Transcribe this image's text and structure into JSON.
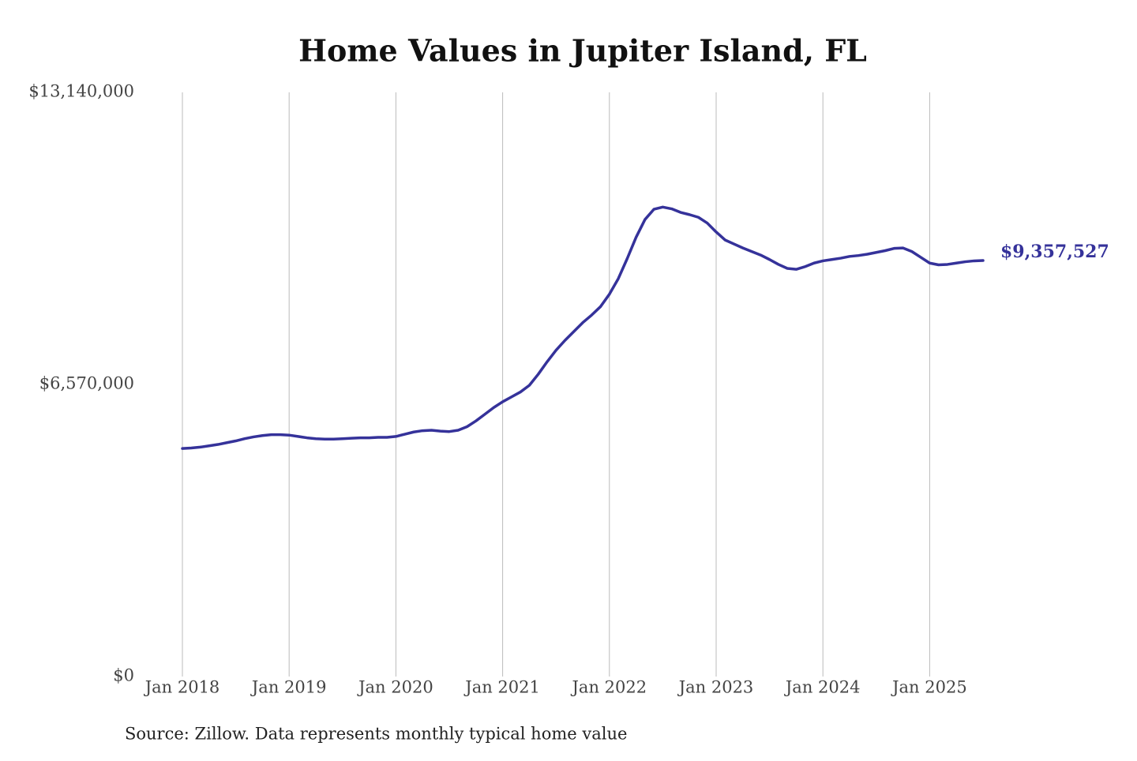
{
  "chart_data": {
    "type": "line",
    "title": "Home Values in Jupiter Island, FL",
    "source": "Source: Zillow. Data represents monthly typical home value",
    "x": [
      "2018-01",
      "2018-02",
      "2018-03",
      "2018-04",
      "2018-05",
      "2018-06",
      "2018-07",
      "2018-08",
      "2018-09",
      "2018-10",
      "2018-11",
      "2018-12",
      "2019-01",
      "2019-02",
      "2019-03",
      "2019-04",
      "2019-05",
      "2019-06",
      "2019-07",
      "2019-08",
      "2019-09",
      "2019-10",
      "2019-11",
      "2019-12",
      "2020-01",
      "2020-02",
      "2020-03",
      "2020-04",
      "2020-05",
      "2020-06",
      "2020-07",
      "2020-08",
      "2020-09",
      "2020-10",
      "2020-11",
      "2020-12",
      "2021-01",
      "2021-02",
      "2021-03",
      "2021-04",
      "2021-05",
      "2021-06",
      "2021-07",
      "2021-08",
      "2021-09",
      "2021-10",
      "2021-11",
      "2021-12",
      "2022-01",
      "2022-02",
      "2022-03",
      "2022-04",
      "2022-05",
      "2022-06",
      "2022-07",
      "2022-08",
      "2022-09",
      "2022-10",
      "2022-11",
      "2022-12",
      "2023-01",
      "2023-02",
      "2023-03",
      "2023-04",
      "2023-05",
      "2023-06",
      "2023-07",
      "2023-08",
      "2023-09",
      "2023-10",
      "2023-11",
      "2023-12",
      "2024-01",
      "2024-02",
      "2024-03",
      "2024-04",
      "2024-05",
      "2024-06",
      "2024-07",
      "2024-08",
      "2024-09",
      "2024-10",
      "2024-11",
      "2024-12",
      "2025-01",
      "2025-02",
      "2025-03",
      "2025-04",
      "2025-05",
      "2025-06",
      "2025-07"
    ],
    "series": [
      {
        "name": "Home value",
        "color": "#35329a",
        "values": [
          5130000,
          5140000,
          5160000,
          5190000,
          5220000,
          5260000,
          5300000,
          5350000,
          5390000,
          5420000,
          5440000,
          5440000,
          5430000,
          5400000,
          5370000,
          5350000,
          5340000,
          5340000,
          5350000,
          5360000,
          5370000,
          5370000,
          5380000,
          5380000,
          5400000,
          5450000,
          5500000,
          5530000,
          5540000,
          5520000,
          5510000,
          5540000,
          5620000,
          5750000,
          5900000,
          6050000,
          6180000,
          6290000,
          6400000,
          6550000,
          6800000,
          7080000,
          7340000,
          7560000,
          7760000,
          7960000,
          8130000,
          8320000,
          8600000,
          8950000,
          9400000,
          9880000,
          10280000,
          10510000,
          10560000,
          10520000,
          10440000,
          10390000,
          10330000,
          10200000,
          10000000,
          9820000,
          9730000,
          9640000,
          9560000,
          9480000,
          9380000,
          9270000,
          9180000,
          9160000,
          9220000,
          9300000,
          9350000,
          9380000,
          9410000,
          9450000,
          9470000,
          9500000,
          9540000,
          9580000,
          9630000,
          9640000,
          9560000,
          9430000,
          9300000,
          9260000,
          9270000,
          9300000,
          9330000,
          9350000,
          9357527
        ],
        "value_labels": [
          null,
          null,
          null,
          null,
          null,
          null,
          null,
          null,
          null,
          null,
          null,
          null,
          null,
          null,
          null,
          null,
          null,
          null,
          null,
          null,
          null,
          null,
          null,
          null,
          null,
          null,
          null,
          null,
          null,
          null,
          null,
          null,
          null,
          null,
          null,
          null,
          null,
          null,
          null,
          null,
          null,
          null,
          null,
          null,
          null,
          null,
          null,
          null,
          null,
          null,
          null,
          null,
          null,
          null,
          null,
          null,
          null,
          null,
          null,
          null,
          null,
          null,
          null,
          null,
          null,
          null,
          null,
          null,
          null,
          null,
          null,
          null,
          null,
          null,
          null,
          null,
          null,
          null,
          null,
          null,
          null,
          null,
          null,
          null,
          null,
          null,
          null,
          null,
          null,
          null,
          "$9,357,527"
        ]
      }
    ],
    "xlim": [
      "2018-01",
      "2025-07"
    ],
    "xticks": [
      {
        "value": "2018-01",
        "label": "Jan 2018"
      },
      {
        "value": "2019-01",
        "label": "Jan 2019"
      },
      {
        "value": "2020-01",
        "label": "Jan 2020"
      },
      {
        "value": "2021-01",
        "label": "Jan 2021"
      },
      {
        "value": "2022-01",
        "label": "Jan 2022"
      },
      {
        "value": "2023-01",
        "label": "Jan 2023"
      },
      {
        "value": "2024-01",
        "label": "Jan 2024"
      },
      {
        "value": "2025-01",
        "label": "Jan 2025"
      }
    ],
    "ylim": [
      0,
      13140000
    ],
    "yticks": [
      {
        "value": 0,
        "label": "$0"
      },
      {
        "value": 6570000,
        "label": "$6,570,000"
      },
      {
        "value": 13140000,
        "label": "$13,140,000"
      }
    ],
    "grid": "x"
  }
}
